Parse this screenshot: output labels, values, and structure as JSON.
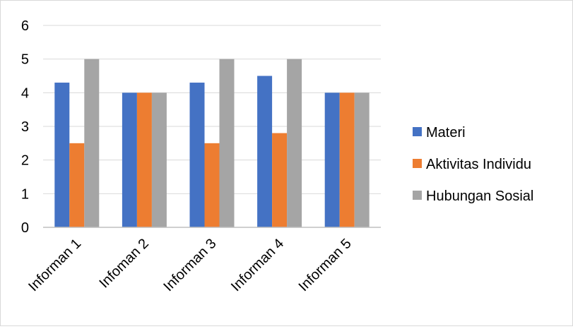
{
  "chart_data": {
    "type": "bar",
    "title": "",
    "xlabel": "",
    "ylabel": "",
    "categories": [
      "Informan 1",
      "Infoman 2",
      "Informan 3",
      "Informan 4",
      "Informan 5"
    ],
    "series": [
      {
        "name": "Materi",
        "values": [
          4.3,
          4.0,
          4.3,
          4.5,
          4.0
        ],
        "color": "#4472c4"
      },
      {
        "name": "Aktivitas Individu",
        "values": [
          2.5,
          4.0,
          2.5,
          2.8,
          4.0
        ],
        "color": "#ed7d31"
      },
      {
        "name": "Hubungan Sosial",
        "values": [
          5.0,
          4.0,
          5.0,
          5.0,
          4.0
        ],
        "color": "#a5a5a5"
      }
    ],
    "ylim": [
      0,
      6
    ],
    "yticks": [
      "0",
      "1",
      "2",
      "3",
      "4",
      "5",
      "6"
    ],
    "grid": true,
    "legend": "right"
  }
}
